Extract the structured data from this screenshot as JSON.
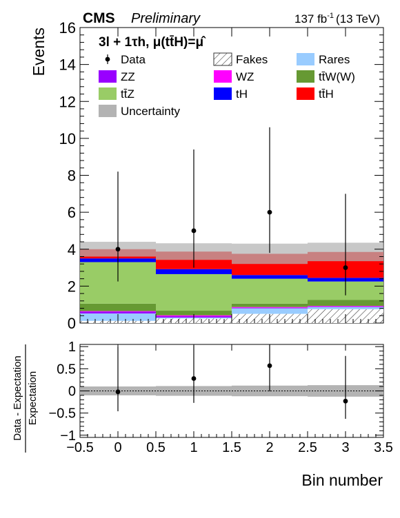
{
  "header": {
    "experiment": "CMS",
    "status": "Preliminary",
    "lumi": "137 fb",
    "lumi_exp": "-1",
    "energy": "(13 TeV)"
  },
  "category_label": "3l + 1τh, μ(tt̄H)=μ̂",
  "chart_data": [
    {
      "type": "bar",
      "subtype": "stacked-histogram",
      "xlim": [
        -0.5,
        3.5
      ],
      "ylim": [
        0,
        16
      ],
      "ylabel": "Events",
      "yticks": [
        0,
        2,
        4,
        6,
        8,
        10,
        12,
        14,
        16
      ],
      "bin_edges": [
        -0.5,
        0.5,
        1.5,
        2.5,
        3.5
      ],
      "stack_order": [
        "Fakes",
        "Rares",
        "ZZ",
        "WZ",
        "tt̄W(W)",
        "tt̄Z",
        "tH",
        "tt̄H"
      ],
      "series": [
        {
          "name": "Fakes",
          "color": "#ffffff",
          "hatch": true,
          "values": [
            0.12,
            0.25,
            0.5,
            0.75
          ]
        },
        {
          "name": "Rares",
          "color": "#99ccff",
          "values": [
            0.4,
            0.05,
            0.3,
            0.12
          ]
        },
        {
          "name": "ZZ",
          "color": "#9900ff",
          "values": [
            0.1,
            0.07,
            0.03,
            0.03
          ]
        },
        {
          "name": "WZ",
          "color": "#ff00ff",
          "values": [
            0.03,
            0.05,
            0.04,
            0.03
          ]
        },
        {
          "name": "tt̄W(W)",
          "color": "#669933",
          "values": [
            0.4,
            0.25,
            0.18,
            0.32
          ]
        },
        {
          "name": "tt̄Z",
          "color": "#99cc66",
          "values": [
            2.25,
            1.98,
            1.35,
            1.0
          ]
        },
        {
          "name": "tH",
          "color": "#0000ff",
          "values": [
            0.2,
            0.27,
            0.2,
            0.2
          ]
        },
        {
          "name": "tt̄H",
          "color": "#ff0000",
          "values": [
            0.5,
            0.95,
            1.15,
            1.4
          ]
        }
      ],
      "uncertainty": {
        "name": "Uncertainty",
        "color": "#b3b3b3",
        "values": [
          0.4,
          0.45,
          0.55,
          0.5
        ]
      },
      "data": {
        "name": "Data",
        "x": [
          0,
          1,
          2,
          3
        ],
        "y": [
          4,
          5,
          6,
          3
        ],
        "err_low": [
          1.75,
          2.0,
          2.2,
          1.5
        ],
        "err_high": [
          4.2,
          4.4,
          4.6,
          4.0
        ]
      },
      "legend": {
        "position": "top-left",
        "columns": 3,
        "entries": [
          {
            "label": "Data",
            "kind": "marker"
          },
          {
            "label": "Fakes",
            "kind": "hatch",
            "color": "#ffffff"
          },
          {
            "label": "Rares",
            "kind": "fill",
            "color": "#99ccff"
          },
          {
            "label": "ZZ",
            "kind": "fill",
            "color": "#9900ff"
          },
          {
            "label": "WZ",
            "kind": "fill",
            "color": "#ff00ff"
          },
          {
            "label": "tt̄W(W)",
            "kind": "fill",
            "color": "#669933"
          },
          {
            "label": "tt̄Z",
            "kind": "fill",
            "color": "#99cc66"
          },
          {
            "label": "tH",
            "kind": "fill",
            "color": "#0000ff"
          },
          {
            "label": "tt̄H",
            "kind": "fill",
            "color": "#ff0000"
          },
          {
            "label": "Uncertainty",
            "kind": "fill",
            "color": "#b3b3b3"
          }
        ]
      }
    },
    {
      "type": "scatter",
      "subtype": "ratio",
      "xlim": [
        -0.5,
        3.5
      ],
      "ylim": [
        -1.05,
        1.05
      ],
      "ylabel_numerator": "Data - Expectation",
      "ylabel_denominator": "Expectation",
      "xlabel": "Bin number",
      "xticks": [
        -0.5,
        0,
        0.5,
        1,
        1.5,
        2,
        2.5,
        3,
        3.5
      ],
      "xtick_labels": [
        "−0.5",
        "0",
        "0.5",
        "1",
        "1.5",
        "2",
        "2.5",
        "3",
        "3.5"
      ],
      "yticks": [
        -1,
        -0.5,
        0,
        0.5,
        1
      ],
      "ytick_labels": [
        "−1",
        "−0.5",
        "0",
        "0.5",
        "1"
      ],
      "reference_line": 0,
      "uncertainty_band": [
        0.1,
        0.11,
        0.12,
        0.13
      ],
      "points": {
        "x": [
          0,
          1,
          2,
          3
        ],
        "y": [
          -0.02,
          0.28,
          0.57,
          -0.23
        ],
        "err_low": [
          0.44,
          0.55,
          0.58,
          0.4
        ],
        "err_high": [
          1.02,
          0.75,
          0.48,
          1.02
        ]
      }
    }
  ]
}
